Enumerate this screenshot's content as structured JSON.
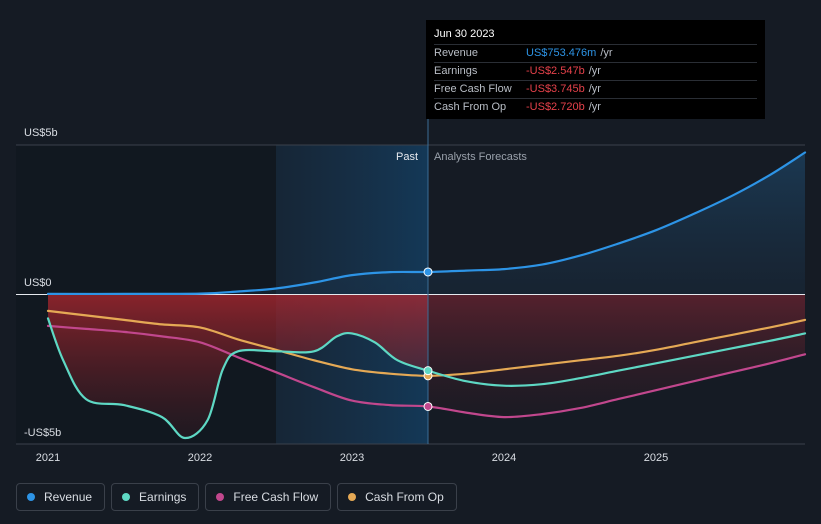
{
  "chart_data": {
    "type": "line",
    "title": "",
    "x_ticks": [
      "2021",
      "2022",
      "2023",
      "2024",
      "2025"
    ],
    "y_labels": {
      "top": "US$5b",
      "zero": "US$0",
      "bottom": "-US$5b"
    },
    "ylim": [
      -5,
      5
    ],
    "xlim": [
      2021.0,
      2026.0
    ],
    "divider_label_past": "Past",
    "divider_label_forecast": "Analysts Forecasts",
    "divider_x": 2023.5,
    "highlight_start_x": 2022.5,
    "series": [
      {
        "name": "Revenue",
        "color": "#2d94e6",
        "points": [
          [
            2021.0,
            0.02
          ],
          [
            2021.5,
            0.02
          ],
          [
            2022.0,
            0.03
          ],
          [
            2022.25,
            0.1
          ],
          [
            2022.5,
            0.2
          ],
          [
            2022.75,
            0.4
          ],
          [
            2023.0,
            0.65
          ],
          [
            2023.25,
            0.75
          ],
          [
            2023.5,
            0.753
          ],
          [
            2023.75,
            0.8
          ],
          [
            2024.0,
            0.85
          ],
          [
            2024.25,
            1.0
          ],
          [
            2024.5,
            1.3
          ],
          [
            2024.75,
            1.7
          ],
          [
            2025.0,
            2.15
          ],
          [
            2025.25,
            2.7
          ],
          [
            2025.5,
            3.3
          ],
          [
            2025.75,
            4.0
          ],
          [
            2026.0,
            4.75
          ]
        ]
      },
      {
        "name": "Earnings",
        "color": "#5ed8c4",
        "points": [
          [
            2021.0,
            -0.8
          ],
          [
            2021.1,
            -2.2
          ],
          [
            2021.25,
            -3.5
          ],
          [
            2021.5,
            -3.7
          ],
          [
            2021.75,
            -4.1
          ],
          [
            2021.9,
            -4.8
          ],
          [
            2022.05,
            -4.2
          ],
          [
            2022.15,
            -2.5
          ],
          [
            2022.25,
            -1.9
          ],
          [
            2022.5,
            -1.9
          ],
          [
            2022.75,
            -1.9
          ],
          [
            2022.9,
            -1.4
          ],
          [
            2023.0,
            -1.3
          ],
          [
            2023.15,
            -1.6
          ],
          [
            2023.3,
            -2.2
          ],
          [
            2023.5,
            -2.547
          ],
          [
            2023.75,
            -2.9
          ],
          [
            2024.0,
            -3.05
          ],
          [
            2024.25,
            -3.0
          ],
          [
            2024.5,
            -2.8
          ],
          [
            2024.75,
            -2.55
          ],
          [
            2025.0,
            -2.3
          ],
          [
            2025.25,
            -2.05
          ],
          [
            2025.5,
            -1.8
          ],
          [
            2025.75,
            -1.55
          ],
          [
            2026.0,
            -1.3
          ]
        ]
      },
      {
        "name": "Free Cash Flow",
        "color": "#c1478d",
        "points": [
          [
            2021.0,
            -1.05
          ],
          [
            2021.25,
            -1.15
          ],
          [
            2021.5,
            -1.25
          ],
          [
            2021.75,
            -1.4
          ],
          [
            2022.0,
            -1.6
          ],
          [
            2022.25,
            -2.1
          ],
          [
            2022.5,
            -2.6
          ],
          [
            2022.75,
            -3.1
          ],
          [
            2023.0,
            -3.55
          ],
          [
            2023.25,
            -3.7
          ],
          [
            2023.5,
            -3.745
          ],
          [
            2023.75,
            -3.95
          ],
          [
            2024.0,
            -4.1
          ],
          [
            2024.25,
            -4.0
          ],
          [
            2024.5,
            -3.8
          ],
          [
            2024.75,
            -3.5
          ],
          [
            2025.0,
            -3.2
          ],
          [
            2025.25,
            -2.9
          ],
          [
            2025.5,
            -2.6
          ],
          [
            2025.75,
            -2.3
          ],
          [
            2026.0,
            -2.0
          ]
        ]
      },
      {
        "name": "Cash From Op",
        "color": "#e5a955",
        "points": [
          [
            2021.0,
            -0.55
          ],
          [
            2021.25,
            -0.7
          ],
          [
            2021.5,
            -0.85
          ],
          [
            2021.75,
            -1.0
          ],
          [
            2022.0,
            -1.1
          ],
          [
            2022.25,
            -1.5
          ],
          [
            2022.5,
            -1.85
          ],
          [
            2022.75,
            -2.2
          ],
          [
            2023.0,
            -2.5
          ],
          [
            2023.25,
            -2.65
          ],
          [
            2023.5,
            -2.72
          ],
          [
            2023.75,
            -2.65
          ],
          [
            2024.0,
            -2.5
          ],
          [
            2024.25,
            -2.35
          ],
          [
            2024.5,
            -2.2
          ],
          [
            2024.75,
            -2.05
          ],
          [
            2025.0,
            -1.85
          ],
          [
            2025.25,
            -1.6
          ],
          [
            2025.5,
            -1.35
          ],
          [
            2025.75,
            -1.1
          ],
          [
            2026.0,
            -0.85
          ]
        ]
      }
    ]
  },
  "tooltip": {
    "date": "Jun 30 2023",
    "rows": [
      {
        "label": "Revenue",
        "value": "US$753.476m",
        "unit": "/yr",
        "color": "#2d94e6"
      },
      {
        "label": "Earnings",
        "value": "-US$2.547b",
        "unit": "/yr",
        "color": "#e5414a"
      },
      {
        "label": "Free Cash Flow",
        "value": "-US$3.745b",
        "unit": "/yr",
        "color": "#e5414a"
      },
      {
        "label": "Cash From Op",
        "value": "-US$2.720b",
        "unit": "/yr",
        "color": "#e5414a"
      }
    ]
  },
  "legend": [
    {
      "label": "Revenue",
      "color": "#2d94e6"
    },
    {
      "label": "Earnings",
      "color": "#5ed8c4"
    },
    {
      "label": "Free Cash Flow",
      "color": "#c1478d"
    },
    {
      "label": "Cash From Op",
      "color": "#e5a955"
    }
  ]
}
